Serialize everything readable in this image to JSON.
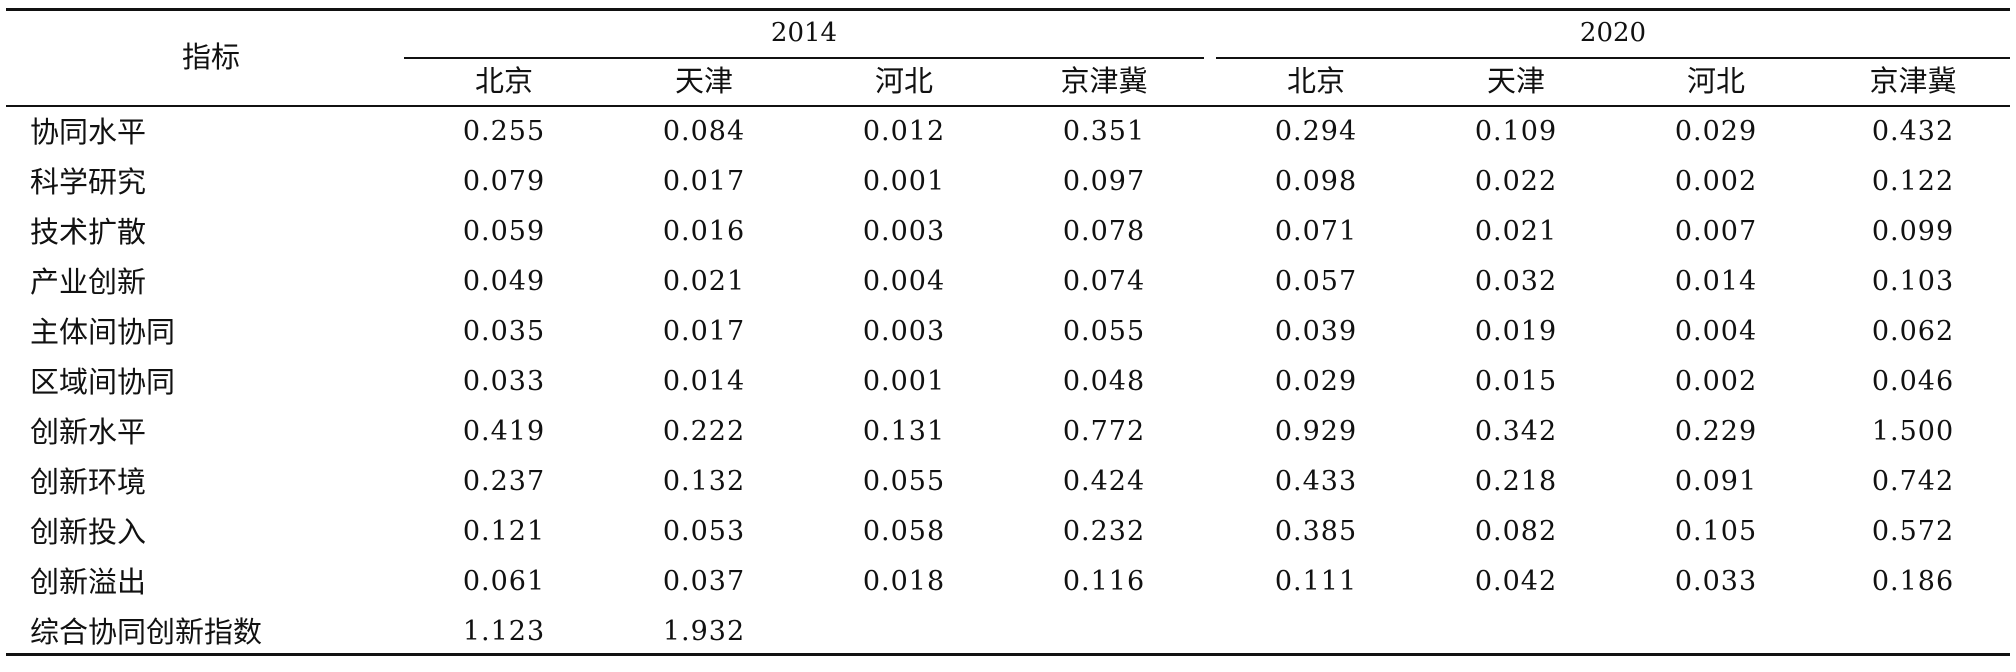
{
  "table": {
    "corner_label": "指标",
    "years": [
      "2014",
      "2020"
    ],
    "columns": [
      "北京",
      "天津",
      "河北",
      "京津冀",
      "北京",
      "天津",
      "河北",
      "京津冀"
    ],
    "rows": [
      {
        "label": "协同水平",
        "values": [
          "0.255",
          "0.084",
          "0.012",
          "0.351",
          "0.294",
          "0.109",
          "0.029",
          "0.432"
        ]
      },
      {
        "label": "科学研究",
        "values": [
          "0.079",
          "0.017",
          "0.001",
          "0.097",
          "0.098",
          "0.022",
          "0.002",
          "0.122"
        ]
      },
      {
        "label": "技术扩散",
        "values": [
          "0.059",
          "0.016",
          "0.003",
          "0.078",
          "0.071",
          "0.021",
          "0.007",
          "0.099"
        ]
      },
      {
        "label": "产业创新",
        "values": [
          "0.049",
          "0.021",
          "0.004",
          "0.074",
          "0.057",
          "0.032",
          "0.014",
          "0.103"
        ]
      },
      {
        "label": "主体间协同",
        "values": [
          "0.035",
          "0.017",
          "0.003",
          "0.055",
          "0.039",
          "0.019",
          "0.004",
          "0.062"
        ]
      },
      {
        "label": "区域间协同",
        "values": [
          "0.033",
          "0.014",
          "0.001",
          "0.048",
          "0.029",
          "0.015",
          "0.002",
          "0.046"
        ]
      },
      {
        "label": "创新水平",
        "values": [
          "0.419",
          "0.222",
          "0.131",
          "0.772",
          "0.929",
          "0.342",
          "0.229",
          "1.500"
        ]
      },
      {
        "label": "创新环境",
        "values": [
          "0.237",
          "0.132",
          "0.055",
          "0.424",
          "0.433",
          "0.218",
          "0.091",
          "0.742"
        ]
      },
      {
        "label": "创新投入",
        "values": [
          "0.121",
          "0.053",
          "0.058",
          "0.232",
          "0.385",
          "0.082",
          "0.105",
          "0.572"
        ]
      },
      {
        "label": "创新溢出",
        "values": [
          "0.061",
          "0.037",
          "0.018",
          "0.116",
          "0.111",
          "0.042",
          "0.033",
          "0.186"
        ]
      },
      {
        "label": "综合协同创新指数",
        "values": [
          "1.123",
          "1.932",
          "",
          "",
          "",
          "",
          "",
          ""
        ]
      }
    ]
  }
}
